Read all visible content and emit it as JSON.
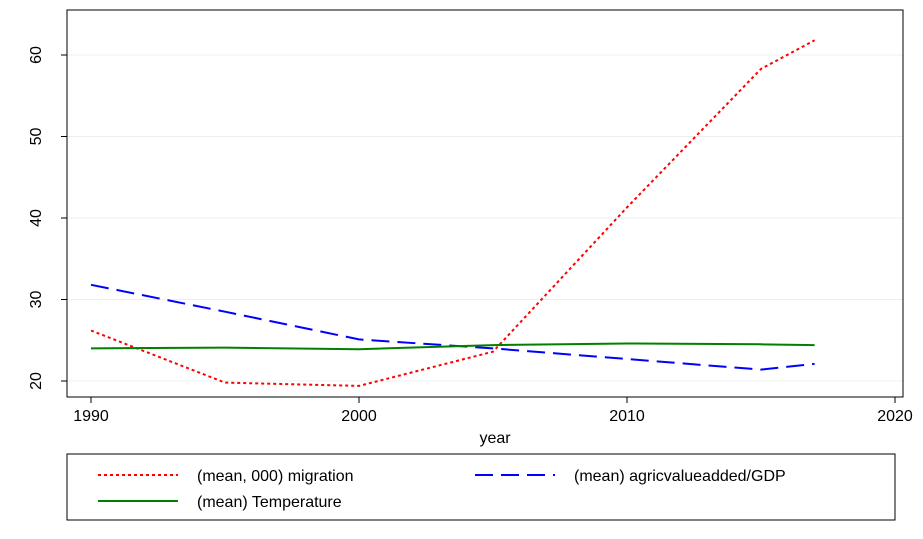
{
  "chart_data": {
    "type": "line",
    "title": "",
    "xlabel": "year",
    "ylabel": "",
    "xlim": [
      1990,
      2020
    ],
    "ylim": [
      20,
      62
    ],
    "xticks": [
      1990,
      2000,
      2010,
      2020
    ],
    "yticks": [
      20,
      30,
      40,
      50,
      60
    ],
    "grid": true,
    "legend_position": "bottom",
    "series": [
      {
        "name": "(mean, 000) migration",
        "color": "#ff0000",
        "dash": "dotted",
        "x": [
          1990,
          1995,
          2000,
          2005,
          2010,
          2015,
          2017
        ],
        "y": [
          26.2,
          19.8,
          19.4,
          23.6,
          41.3,
          58.3,
          61.8
        ]
      },
      {
        "name": "(mean) agricvalueadded/GDP",
        "color": "#0000ff",
        "dash": "dashed",
        "x": [
          1990,
          1995,
          2000,
          2005,
          2010,
          2015,
          2017
        ],
        "y": [
          31.8,
          28.5,
          25.1,
          24.0,
          22.7,
          21.4,
          22.1
        ]
      },
      {
        "name": "(mean) Temperature",
        "color": "#008000",
        "dash": "solid",
        "x": [
          1990,
          1995,
          2000,
          2005,
          2010,
          2015,
          2017
        ],
        "y": [
          24.0,
          24.1,
          23.9,
          24.4,
          24.6,
          24.5,
          24.4
        ]
      }
    ]
  }
}
